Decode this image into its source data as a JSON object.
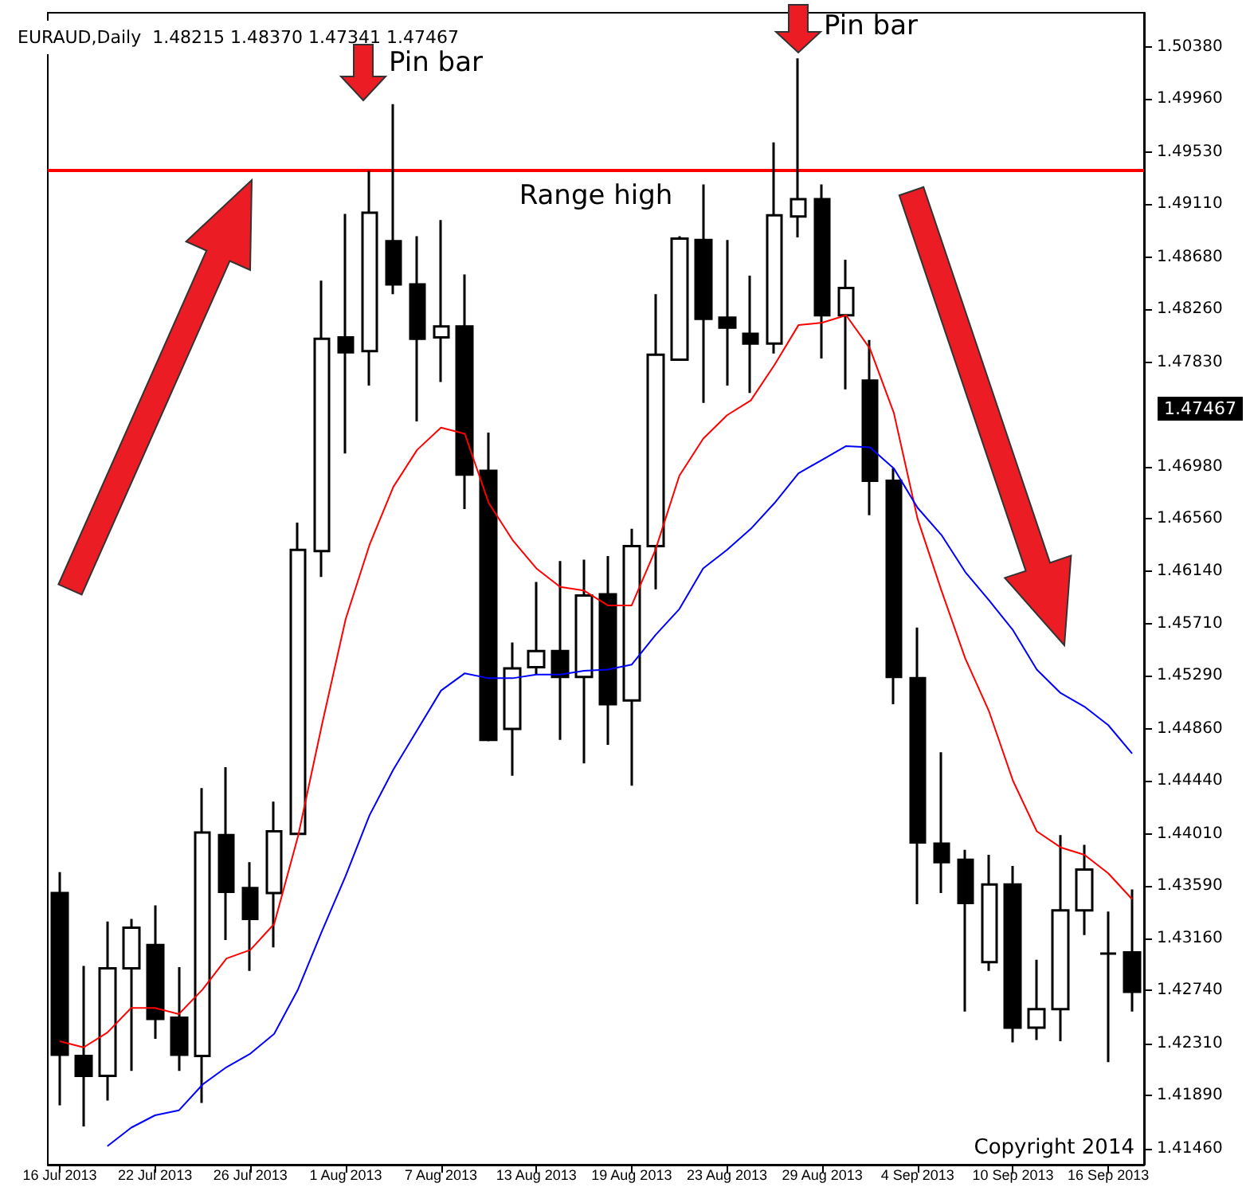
{
  "chart_data": {
    "type": "candlestick",
    "title": "EURAUD,Daily  1.48215 1.48370 1.47341 1.47467",
    "categories": [
      "16 Jul 2013",
      null,
      null,
      null,
      "22 Jul 2013",
      null,
      null,
      null,
      "26 Jul 2013",
      null,
      null,
      null,
      "1 Aug 2013",
      null,
      null,
      null,
      "7 Aug 2013",
      null,
      null,
      null,
      "13 Aug 2013",
      null,
      null,
      null,
      "19 Aug 2013",
      null,
      null,
      null,
      "23 Aug 2013",
      null,
      null,
      null,
      "29 Aug 2013",
      null,
      null,
      null,
      "4 Sep 2013",
      null,
      null,
      null,
      "10 Sep 2013",
      null,
      null,
      null,
      "16 Sep 2013",
      null
    ],
    "ohlc": [
      [
        1.4353,
        1.437,
        1.4181,
        1.4222
      ],
      [
        1.4221,
        1.4294,
        1.4164,
        1.4205
      ],
      [
        1.4205,
        1.433,
        1.4185,
        1.4292
      ],
      [
        1.4292,
        1.4332,
        1.4209,
        1.4325
      ],
      [
        1.4311,
        1.4343,
        1.4235,
        1.4251
      ],
      [
        1.4252,
        1.4293,
        1.4209,
        1.4222
      ],
      [
        1.4221,
        1.4438,
        1.4183,
        1.4402
      ],
      [
        1.44,
        1.4455,
        1.4315,
        1.4354
      ],
      [
        1.4357,
        1.4378,
        1.429,
        1.4332
      ],
      [
        1.4353,
        1.4427,
        1.4309,
        1.4403
      ],
      [
        1.4401,
        1.4653,
        1.44,
        1.4631
      ],
      [
        1.463,
        1.4849,
        1.4609,
        1.4802
      ],
      [
        1.4803,
        1.4903,
        1.4709,
        1.4791
      ],
      [
        1.4792,
        1.4938,
        1.4764,
        1.4904
      ],
      [
        1.4881,
        1.4992,
        1.4838,
        1.4846
      ],
      [
        1.4846,
        1.4885,
        1.4735,
        1.4802
      ],
      [
        1.4803,
        1.4898,
        1.4767,
        1.4812
      ],
      [
        1.4812,
        1.4854,
        1.4664,
        1.4692
      ],
      [
        1.4695,
        1.4726,
        1.4476,
        1.4477
      ],
      [
        1.4486,
        1.4556,
        1.4448,
        1.4535
      ],
      [
        1.4536,
        1.4605,
        1.453,
        1.4549
      ],
      [
        1.4549,
        1.4622,
        1.4477,
        1.4528
      ],
      [
        1.4528,
        1.4623,
        1.4458,
        1.4594
      ],
      [
        1.4595,
        1.4626,
        1.4473,
        1.4506
      ],
      [
        1.4509,
        1.4648,
        1.444,
        1.4634
      ],
      [
        1.4634,
        1.4838,
        1.4599,
        1.4789
      ],
      [
        1.4785,
        1.4885,
        1.4784,
        1.4883
      ],
      [
        1.4882,
        1.4927,
        1.475,
        1.4818
      ],
      [
        1.4819,
        1.4882,
        1.4764,
        1.4811
      ],
      [
        1.4806,
        1.4853,
        1.4758,
        1.4798
      ],
      [
        1.4798,
        1.4961,
        1.479,
        1.4902
      ],
      [
        1.4901,
        1.5029,
        1.4884,
        1.4915
      ],
      [
        1.4915,
        1.4927,
        1.4786,
        1.4821
      ],
      [
        1.4821,
        1.4866,
        1.4761,
        1.4843
      ],
      [
        1.4768,
        1.4801,
        1.4659,
        1.4687
      ],
      [
        1.4687,
        1.4697,
        1.4506,
        1.4528
      ],
      [
        1.4527,
        1.4568,
        1.4344,
        1.4394
      ],
      [
        1.4393,
        1.4467,
        1.4353,
        1.4378
      ],
      [
        1.438,
        1.4388,
        1.4257,
        1.4345
      ],
      [
        1.4297,
        1.4384,
        1.429,
        1.436
      ],
      [
        1.436,
        1.4375,
        1.4232,
        1.4244
      ],
      [
        1.4244,
        1.4299,
        1.4234,
        1.4259
      ],
      [
        1.4259,
        1.44,
        1.4233,
        1.4339
      ],
      [
        1.4339,
        1.4392,
        1.4319,
        1.4372
      ],
      [
        1.4304,
        1.4338,
        1.4216,
        1.4304
      ],
      [
        1.4305,
        1.4356,
        1.4257,
        1.4273
      ]
    ],
    "series": [
      {
        "type": "line",
        "color": "#ff0000",
        "values": [
          1.4233,
          1.4228,
          1.424,
          1.426,
          1.426,
          1.4255,
          1.4275,
          1.43,
          1.4307,
          1.4328,
          1.4399,
          1.4489,
          1.4575,
          1.4635,
          1.4682,
          1.4712,
          1.473,
          1.4725,
          1.4669,
          1.4639,
          1.4616,
          1.4601,
          1.4598,
          1.4586,
          1.4586,
          1.4631,
          1.4691,
          1.4721,
          1.474,
          1.4752,
          1.4781,
          1.4813,
          1.4815,
          1.4821,
          1.4794,
          1.4742,
          1.4656,
          1.4598,
          1.4543,
          1.45,
          1.4444,
          1.4403,
          1.439,
          1.4384,
          1.4369,
          1.4348
        ]
      },
      {
        "type": "line",
        "color": "#0000ff",
        "values": [
          null,
          null,
          1.4148,
          1.4163,
          1.4173,
          1.4177,
          1.4198,
          1.4212,
          1.4223,
          1.4239,
          1.4275,
          1.4322,
          1.4367,
          1.4416,
          1.4453,
          1.4485,
          1.4517,
          1.4531,
          1.4527,
          1.4527,
          1.453,
          1.453,
          1.4533,
          1.4534,
          1.4538,
          1.4562,
          1.4583,
          1.4616,
          1.4631,
          1.4648,
          1.4669,
          1.4693,
          1.4704,
          1.4715,
          1.4714,
          1.4697,
          1.4665,
          1.4643,
          1.4613,
          1.459,
          1.4566,
          1.4534,
          1.4515,
          1.4504,
          1.4489,
          1.4466
        ]
      }
    ],
    "ylim": [
      1.4133,
      1.5066
    ],
    "yticks": [
      {
        "value": 1.5038,
        "label": "1.50380"
      },
      {
        "value": 1.4996,
        "label": "1.49960"
      },
      {
        "value": 1.4953,
        "label": "1.49530"
      },
      {
        "value": 1.4911,
        "label": "1.49110"
      },
      {
        "value": 1.4868,
        "label": "1.48680"
      },
      {
        "value": 1.4826,
        "label": "1.48260"
      },
      {
        "value": 1.4783,
        "label": "1.47830"
      },
      {
        "value": 1.4698,
        "label": "1.46980"
      },
      {
        "value": 1.4656,
        "label": "1.46560"
      },
      {
        "value": 1.4614,
        "label": "1.46140"
      },
      {
        "value": 1.4571,
        "label": "1.45710"
      },
      {
        "value": 1.4529,
        "label": "1.45290"
      },
      {
        "value": 1.4486,
        "label": "1.44860"
      },
      {
        "value": 1.4444,
        "label": "1.44440"
      },
      {
        "value": 1.4401,
        "label": "1.44010"
      },
      {
        "value": 1.4359,
        "label": "1.43590"
      },
      {
        "value": 1.4316,
        "label": "1.43160"
      },
      {
        "value": 1.4274,
        "label": "1.42740"
      },
      {
        "value": 1.4231,
        "label": "1.42310"
      },
      {
        "value": 1.4189,
        "label": "1.41890"
      },
      {
        "value": 1.4146,
        "label": "1.41460"
      }
    ],
    "ref_lines": [
      {
        "axis": "y",
        "value": 1.4939,
        "label": "Range high",
        "color": "#ff0000"
      }
    ],
    "annotations": [
      "Pin bar",
      "Pin bar",
      "Copyright 2014",
      "1.47467"
    ]
  }
}
